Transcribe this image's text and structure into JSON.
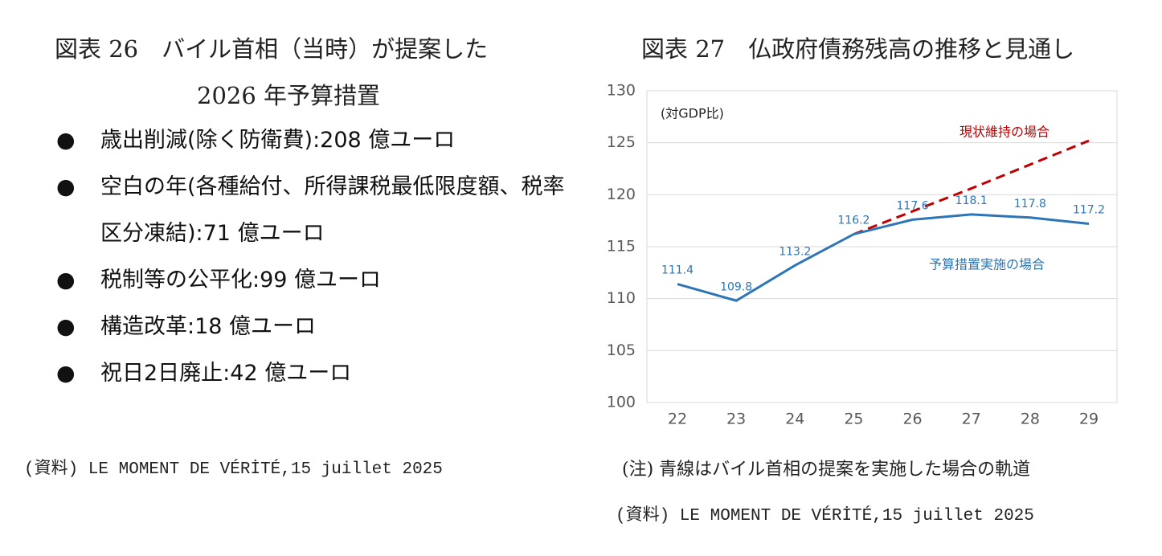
{
  "left": {
    "title": [
      "図表 26　バイル首相（当時）が提案した",
      "2026 年予算措置"
    ],
    "items": [
      "歳出削減(除く防衛費):208 億ユーロ",
      "空白の年(各種給付、所得課税最低限度額、税率区分凍結):71 億ユーロ",
      "税制等の公平化:99 億ユーロ",
      "構造改革:18 億ユーロ",
      "祝日2日廃止:42 億ユーロ"
    ],
    "source": "(資料) LE MOMENT DE VÉRİTÉ,15 juillet 2025"
  },
  "chart_data": {
    "type": "line",
    "title": "図表 27　仏政府債務残高の推移と見通し",
    "y_label": "(対GDP比)",
    "categories": [
      "22",
      "23",
      "24",
      "25",
      "26",
      "27",
      "28",
      "29"
    ],
    "series": [
      {
        "name": "予算措置実施の場合",
        "color": "#2e75b6",
        "dashed": false,
        "show_values": true,
        "values": [
          111.4,
          109.8,
          113.2,
          116.2,
          117.6,
          118.1,
          117.8,
          117.2
        ]
      },
      {
        "name": "現状維持の場合",
        "color": "#c00000",
        "dashed": true,
        "show_values": false,
        "values": [
          null,
          null,
          null,
          116.2,
          118.4,
          120.6,
          122.9,
          125.2
        ]
      }
    ],
    "ylim": [
      100,
      130
    ],
    "yticks": [
      100,
      105,
      110,
      115,
      120,
      125,
      130
    ],
    "grid": true,
    "note": "(注) 青線はバイル首相の提案を実施した場合の軌道",
    "source": "(資料) LE MOMENT DE VÉRİTÉ,15 juillet 2025"
  }
}
